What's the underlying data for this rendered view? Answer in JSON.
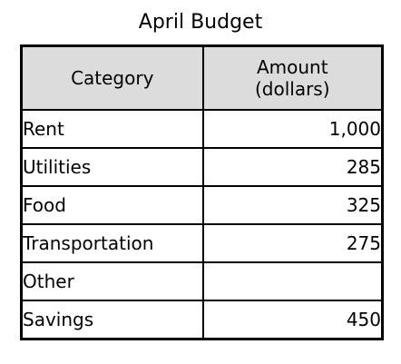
{
  "title": "April Budget",
  "table": {
    "headers": {
      "category": "Category",
      "amount_line1": "Amount",
      "amount_line2": "(dollars)"
    },
    "rows": [
      {
        "category": "Rent",
        "amount": "1,000"
      },
      {
        "category": "Utilities",
        "amount": "285"
      },
      {
        "category": "Food",
        "amount": "325"
      },
      {
        "category": "Transportation",
        "amount": "275"
      },
      {
        "category": "Other",
        "amount": ""
      },
      {
        "category": "Savings",
        "amount": "450"
      }
    ]
  },
  "colors": {
    "header_background": "#dcdcdc",
    "border": "#000000"
  }
}
